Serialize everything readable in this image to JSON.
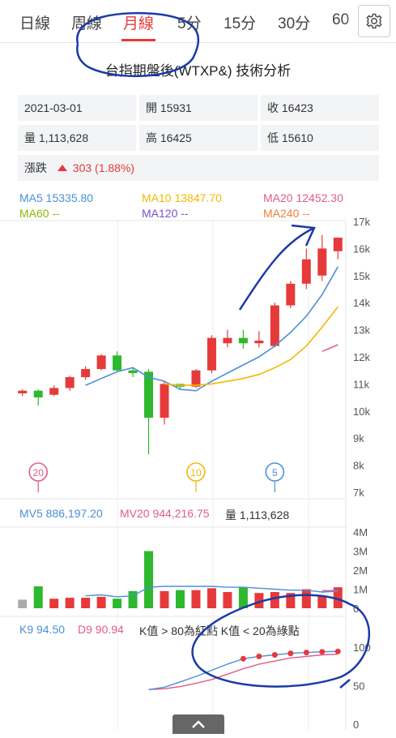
{
  "tabs": [
    {
      "label": "日線"
    },
    {
      "label": "周線"
    },
    {
      "label": "月線"
    },
    {
      "label": "5分"
    },
    {
      "label": "15分"
    },
    {
      "label": "30分"
    },
    {
      "label": "60"
    }
  ],
  "active_tab": "月線",
  "title": "台指期盤後(WTXP&) 技術分析",
  "info": {
    "date": "2021-03-01",
    "open_label": "開",
    "open": "15931",
    "close_label": "收",
    "close": "16423",
    "volume_label": "量",
    "volume": "1,113,628",
    "high_label": "高",
    "high": "16425",
    "low_label": "低",
    "low": "15610",
    "change_label": "漲跌",
    "change": "303 (1.88%)"
  },
  "ma_legend": {
    "ma5": "MA5 15335.80",
    "ma10": "MA10 13847.70",
    "ma20": "MA20 12452.30",
    "ma60": "MA60 --",
    "ma120": "MA120 --",
    "ma240": "MA240 --"
  },
  "mv_legend": {
    "mv5": "MV5 886,197.20",
    "mv20": "MV20 944,216.75",
    "vol": "量 1,113,628"
  },
  "kd_legend": {
    "k": "K9 94.50",
    "d": "D9 90.94",
    "note": "K值 > 80為紅點 K值 < 20為綠點"
  },
  "colors": {
    "up": "#e63a3a",
    "down": "#2db82d",
    "ma5": "#4a90d9",
    "ma10": "#f5b800",
    "ma20": "#e25a8c",
    "ma60": "#8cb800",
    "ma120": "#7a4fd0",
    "ma240": "#f07f3c",
    "pen": "#1a3aa8",
    "gray": "#aaaaaa"
  },
  "chart_data": [
    {
      "type": "candlestick",
      "yticks": [
        "17k",
        "16k",
        "15k",
        "14k",
        "13k",
        "12k",
        "11k",
        "10k",
        "9k",
        "8k",
        "7k"
      ],
      "ylim": [
        7000,
        17000
      ],
      "candles": [
        {
          "o": 10650,
          "h": 10800,
          "l": 10550,
          "c": 10750
        },
        {
          "o": 10750,
          "h": 10800,
          "l": 10200,
          "c": 10500
        },
        {
          "o": 10600,
          "h": 10950,
          "l": 10550,
          "c": 10850
        },
        {
          "o": 10850,
          "h": 11300,
          "l": 10750,
          "c": 11250
        },
        {
          "o": 11250,
          "h": 11650,
          "l": 11150,
          "c": 11550
        },
        {
          "o": 11550,
          "h": 12100,
          "l": 11500,
          "c": 12050
        },
        {
          "o": 12050,
          "h": 12200,
          "l": 11450,
          "c": 11500
        },
        {
          "o": 11500,
          "h": 11600,
          "l": 11250,
          "c": 11400
        },
        {
          "o": 11450,
          "h": 11550,
          "l": 8400,
          "c": 9750
        },
        {
          "o": 9750,
          "h": 11100,
          "l": 9500,
          "c": 11000
        },
        {
          "o": 11000,
          "h": 11000,
          "l": 10800,
          "c": 10900
        },
        {
          "o": 10900,
          "h": 11550,
          "l": 10850,
          "c": 11500
        },
        {
          "o": 11500,
          "h": 12800,
          "l": 11400,
          "c": 12700
        },
        {
          "o": 12500,
          "h": 13000,
          "l": 12350,
          "c": 12700
        },
        {
          "o": 12700,
          "h": 13000,
          "l": 12300,
          "c": 12500
        },
        {
          "o": 12500,
          "h": 12950,
          "l": 12350,
          "c": 12600
        },
        {
          "o": 12400,
          "h": 14000,
          "l": 12350,
          "c": 13900
        },
        {
          "o": 13900,
          "h": 14800,
          "l": 13800,
          "c": 14700
        },
        {
          "o": 14700,
          "h": 16000,
          "l": 14500,
          "c": 15600
        },
        {
          "o": 15000,
          "h": 16500,
          "l": 14800,
          "c": 16000
        },
        {
          "o": 15900,
          "h": 16400,
          "l": 15600,
          "c": 16400
        }
      ],
      "ma5": [
        null,
        null,
        null,
        null,
        10950,
        11200,
        11450,
        11600,
        11250,
        11100,
        10800,
        10750,
        11100,
        11400,
        11700,
        12000,
        12400,
        12900,
        13500,
        14300,
        15330
      ],
      "ma10": [
        null,
        null,
        null,
        null,
        null,
        null,
        null,
        null,
        null,
        11000,
        10950,
        10950,
        11000,
        11100,
        11200,
        11350,
        11600,
        11900,
        12400,
        13100,
        13850
      ],
      "ma20": [
        null,
        null,
        null,
        null,
        null,
        null,
        null,
        null,
        null,
        null,
        null,
        null,
        null,
        null,
        null,
        null,
        null,
        null,
        null,
        12200,
        12450
      ],
      "markers": [
        {
          "label": "20",
          "index": 1
        },
        {
          "label": "10",
          "index": 11
        },
        {
          "label": "5",
          "index": 16
        }
      ]
    },
    {
      "type": "bar",
      "yticks": [
        "4M",
        "3M",
        "2M",
        "1M",
        "0"
      ],
      "ylim": [
        0,
        4000000
      ],
      "volume": [
        450000,
        1150000,
        500000,
        550000,
        550000,
        600000,
        500000,
        900000,
        3000000,
        900000,
        950000,
        950000,
        1050000,
        850000,
        1100000,
        800000,
        850000,
        800000,
        1000000,
        650000,
        1100000
      ],
      "mv5": [
        null,
        null,
        null,
        null,
        650000,
        700000,
        600000,
        650000,
        1100000,
        1150000,
        1150000,
        1150000,
        1150000,
        1100000,
        1100000,
        1050000,
        1000000,
        950000,
        950000,
        850000,
        890000
      ],
      "mv20": [
        null,
        null,
        null,
        null,
        null,
        null,
        null,
        null,
        null,
        null,
        null,
        null,
        null,
        null,
        null,
        null,
        null,
        null,
        null,
        920000,
        944000
      ]
    },
    {
      "type": "line",
      "yticks": [
        "100",
        "50",
        "0"
      ],
      "ylim": [
        0,
        100
      ],
      "k": [
        null,
        null,
        null,
        null,
        null,
        null,
        null,
        null,
        45,
        48,
        55,
        62,
        70,
        78,
        85,
        88,
        90,
        92,
        93,
        94,
        94.5
      ],
      "d": [
        null,
        null,
        null,
        null,
        null,
        null,
        null,
        null,
        45,
        46,
        49,
        53,
        58,
        65,
        72,
        78,
        82,
        86,
        88,
        90,
        90.94
      ]
    }
  ]
}
